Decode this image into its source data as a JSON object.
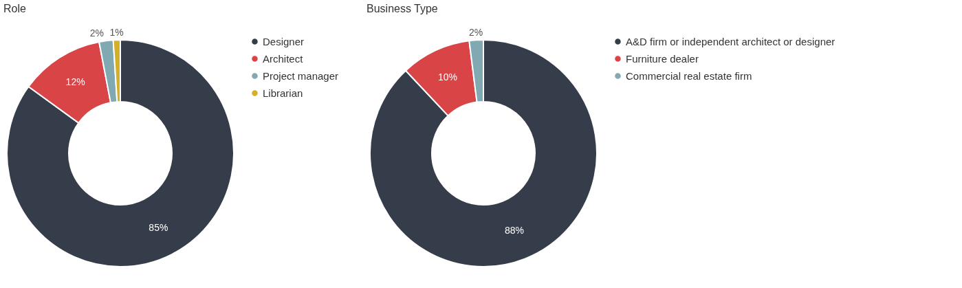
{
  "chart_data": [
    {
      "type": "donut",
      "title": "Role",
      "categories": [
        "Designer",
        "Architect",
        "Project manager",
        "Librarian"
      ],
      "values": [
        85,
        12,
        2,
        1
      ],
      "colors": [
        "#363d4a",
        "#d94446",
        "#80a9b1",
        "#d4b02a"
      ],
      "value_labels": [
        "85%",
        "12%",
        "2%",
        "1%"
      ],
      "legend": "right"
    },
    {
      "type": "donut",
      "title": "Business Type",
      "categories": [
        "A&D firm or independent architect or designer",
        "Furniture dealer",
        "Commercial real estate firm"
      ],
      "values": [
        88,
        10,
        2
      ],
      "colors": [
        "#363d4a",
        "#d94446",
        "#80a9b1"
      ],
      "value_labels": [
        "88%",
        "10%",
        "2%"
      ],
      "legend": "right"
    }
  ]
}
